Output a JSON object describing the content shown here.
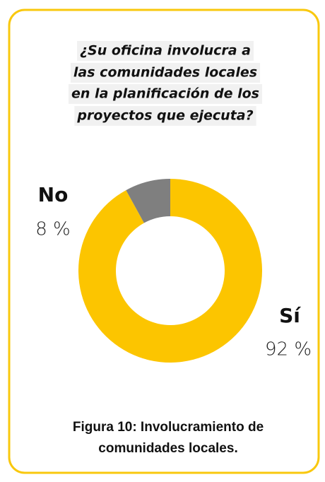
{
  "chart_data": {
    "type": "donut",
    "title": [
      "¿Su oficina involucra a",
      "las comunidades locales",
      "en la planificación de los",
      "proyectos que ejecuta?"
    ],
    "categories": [
      "Sí",
      "No"
    ],
    "values": [
      92,
      8
    ],
    "value_labels": [
      "92 %",
      "8 %"
    ],
    "colors": [
      "#fcc500",
      "#7f7f7f"
    ],
    "caption": [
      "Figura 10: Involucramiento de",
      "comunidades locales."
    ]
  }
}
